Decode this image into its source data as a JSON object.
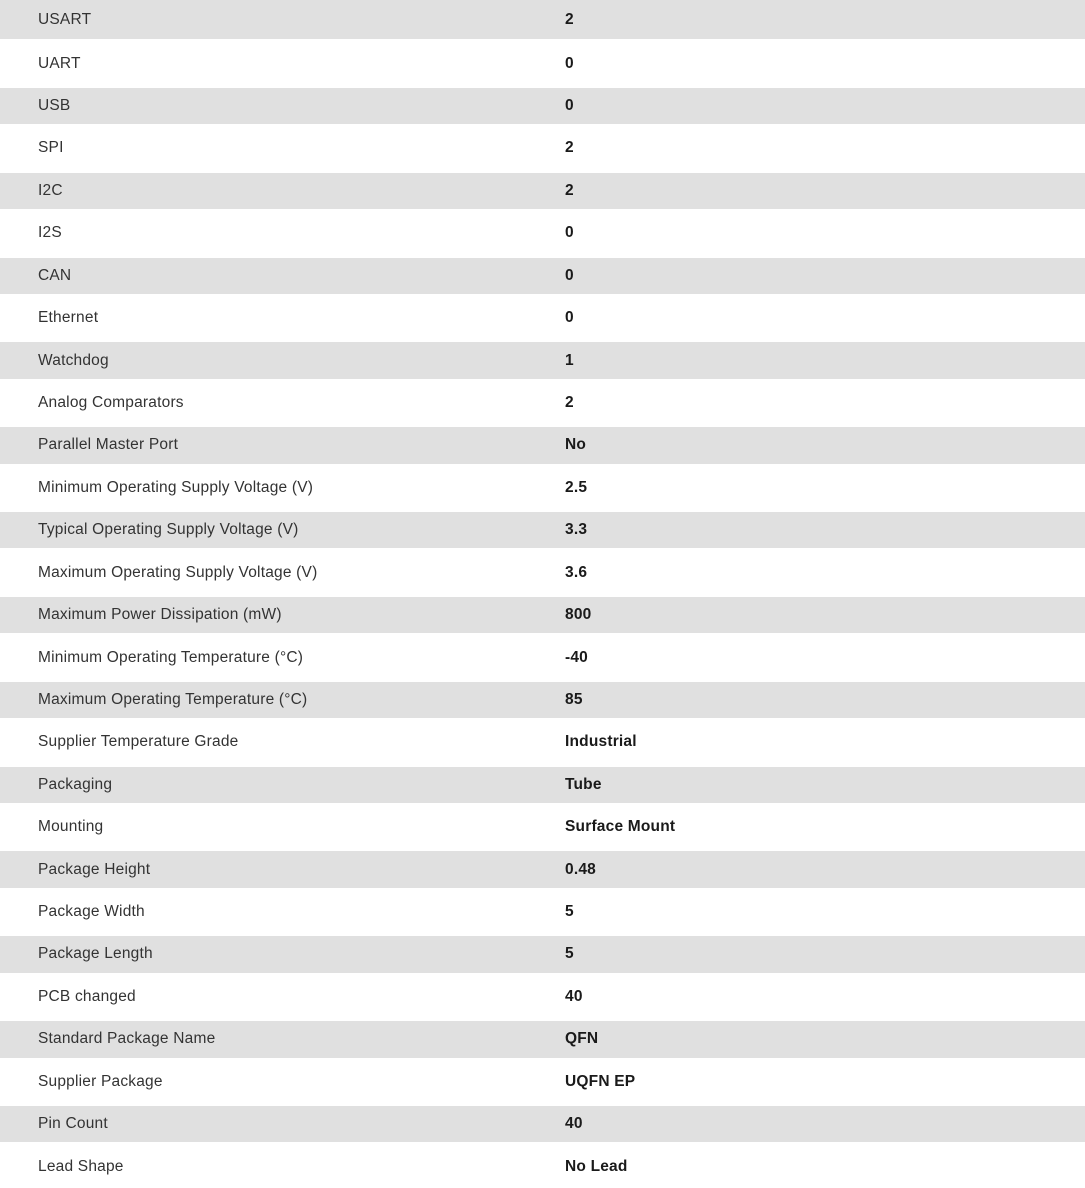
{
  "colors": {
    "stripe_bg": "#e0e0e0",
    "label_color": "#333333",
    "value_color": "#1a1a1a"
  },
  "table": {
    "rows": [
      {
        "label": "USART",
        "value": "2"
      },
      {
        "label": "UART",
        "value": "0"
      },
      {
        "label": "USB",
        "value": "0"
      },
      {
        "label": "SPI",
        "value": "2"
      },
      {
        "label": "I2C",
        "value": "2"
      },
      {
        "label": "I2S",
        "value": "0"
      },
      {
        "label": "CAN",
        "value": "0"
      },
      {
        "label": "Ethernet",
        "value": "0"
      },
      {
        "label": "Watchdog",
        "value": "1"
      },
      {
        "label": "Analog Comparators",
        "value": "2"
      },
      {
        "label": "Parallel Master Port",
        "value": "No"
      },
      {
        "label": "Minimum Operating Supply Voltage (V)",
        "value": "2.5"
      },
      {
        "label": "Typical Operating Supply Voltage (V)",
        "value": "3.3"
      },
      {
        "label": "Maximum Operating Supply Voltage (V)",
        "value": "3.6"
      },
      {
        "label": "Maximum Power Dissipation (mW)",
        "value": "800"
      },
      {
        "label": "Minimum Operating Temperature (°C)",
        "value": "-40"
      },
      {
        "label": "Maximum Operating Temperature (°C)",
        "value": "85"
      },
      {
        "label": "Supplier Temperature Grade",
        "value": "Industrial"
      },
      {
        "label": "Packaging",
        "value": "Tube"
      },
      {
        "label": "Mounting",
        "value": "Surface Mount"
      },
      {
        "label": "Package Height",
        "value": "0.48"
      },
      {
        "label": "Package Width",
        "value": "5"
      },
      {
        "label": "Package Length",
        "value": "5"
      },
      {
        "label": "PCB changed",
        "value": "40"
      },
      {
        "label": "Standard Package Name",
        "value": "QFN"
      },
      {
        "label": "Supplier Package",
        "value": "UQFN EP"
      },
      {
        "label": "Pin Count",
        "value": "40"
      },
      {
        "label": "Lead Shape",
        "value": "No Lead"
      }
    ]
  }
}
